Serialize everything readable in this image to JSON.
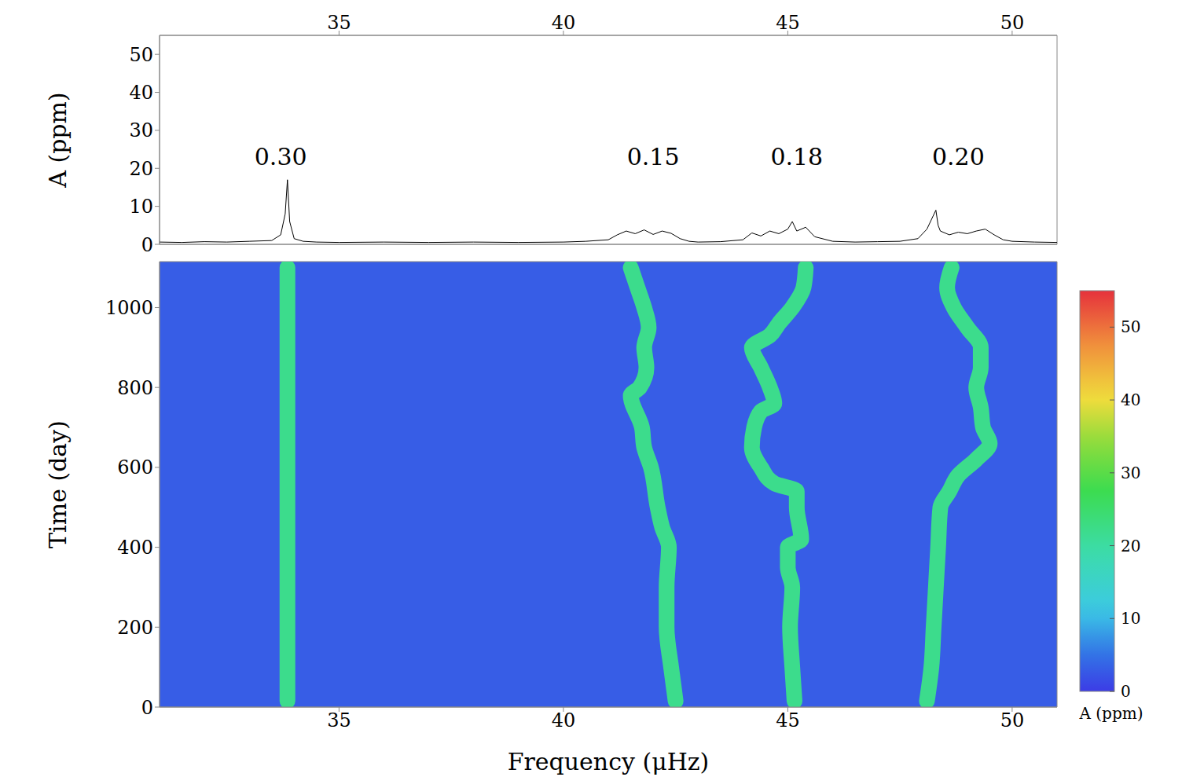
{
  "chart_data": [
    {
      "type": "line",
      "ylabel": "A (ppm)",
      "xlim": [
        31,
        51
      ],
      "xticks": [
        35,
        40,
        45,
        50
      ],
      "ylim": [
        0,
        55
      ],
      "yticks": [
        0,
        10,
        20,
        30,
        40,
        50
      ],
      "color": "#000000",
      "x": [
        31,
        31.5,
        32,
        32.5,
        33,
        33.5,
        33.7,
        33.8,
        33.85,
        33.9,
        34.0,
        34.2,
        34.5,
        35,
        36,
        37,
        38,
        39,
        40,
        40.5,
        41,
        41.2,
        41.4,
        41.6,
        41.8,
        42.0,
        42.2,
        42.4,
        42.6,
        42.8,
        43,
        43.5,
        44,
        44.2,
        44.4,
        44.6,
        44.8,
        45.0,
        45.1,
        45.2,
        45.4,
        45.6,
        46,
        46.5,
        47,
        47.5,
        47.9,
        48.1,
        48.3,
        48.35,
        48.4,
        48.6,
        48.8,
        49.0,
        49.2,
        49.4,
        49.6,
        49.8,
        50,
        50.5,
        51
      ],
      "values": [
        0.6,
        0.5,
        0.7,
        0.6,
        0.8,
        1.0,
        2.5,
        8,
        17,
        6,
        1.5,
        0.8,
        0.6,
        0.5,
        0.6,
        0.5,
        0.6,
        0.5,
        0.6,
        0.8,
        1.2,
        2.5,
        3.5,
        2.8,
        3.8,
        2.6,
        3.5,
        2.9,
        1.5,
        0.8,
        0.6,
        0.7,
        1.2,
        3,
        2.2,
        3.5,
        2.8,
        4,
        6,
        3.5,
        4.5,
        2,
        0.8,
        0.6,
        0.7,
        0.8,
        1.5,
        4,
        9,
        5,
        3.5,
        2.5,
        3.2,
        2.8,
        3.5,
        4,
        2.5,
        1.2,
        0.8,
        0.6,
        0.5
      ],
      "annotations": [
        {
          "text": "0.30",
          "x": 33.7,
          "y": 23
        },
        {
          "text": "0.15",
          "x": 42.0,
          "y": 23
        },
        {
          "text": "0.18",
          "x": 45.2,
          "y": 23
        },
        {
          "text": "0.20",
          "x": 48.8,
          "y": 23
        }
      ]
    },
    {
      "type": "heatmap",
      "xlabel": "Frequency (μHz)",
      "ylabel": "Time (day)",
      "xlim": [
        31,
        51
      ],
      "xticks": [
        35,
        40,
        45,
        50
      ],
      "ylim": [
        0,
        1115
      ],
      "yticks": [
        0,
        200,
        400,
        600,
        800,
        1000
      ],
      "background_amplitude": 3,
      "ridge_amplitude": 22,
      "series": [
        {
          "x": [
            33.85,
            33.85
          ],
          "y": [
            15,
            1100
          ]
        },
        {
          "x": [
            42.5,
            42.4,
            42.3,
            42.3,
            42.35,
            42.2,
            42.1,
            41.95,
            41.8,
            41.75,
            41.5,
            41.7,
            41.85,
            41.8,
            41.9,
            41.8,
            41.65,
            41.5
          ],
          "y": [
            15,
            100,
            200,
            300,
            400,
            450,
            500,
            600,
            650,
            700,
            780,
            800,
            850,
            900,
            950,
            1000,
            1050,
            1100
          ]
        },
        {
          "x": [
            45.15,
            45.1,
            45.05,
            45.1,
            45.0,
            45.0,
            45.3,
            45.2,
            45.2,
            44.7,
            44.4,
            44.2,
            44.25,
            44.4,
            44.7,
            44.6,
            44.4,
            44.2,
            44.6,
            44.8,
            45.1,
            45.35,
            45.4
          ],
          "y": [
            15,
            100,
            200,
            300,
            350,
            400,
            420,
            500,
            540,
            560,
            600,
            650,
            700,
            740,
            760,
            800,
            850,
            900,
            930,
            960,
            1000,
            1050,
            1100
          ]
        },
        {
          "x": [
            48.1,
            48.2,
            48.25,
            48.3,
            48.35,
            48.4,
            48.6,
            48.8,
            49.2,
            49.5,
            49.35,
            49.3,
            49.2,
            49.3,
            49.3,
            49.0,
            48.7,
            48.55,
            48.65
          ],
          "y": [
            15,
            100,
            200,
            300,
            400,
            500,
            540,
            580,
            620,
            660,
            700,
            750,
            800,
            850,
            900,
            950,
            1000,
            1050,
            1100
          ]
        }
      ],
      "colorbar": {
        "label": "A (ppm)",
        "range": [
          0,
          55
        ],
        "ticks": [
          0,
          10,
          20,
          30,
          40,
          50
        ]
      }
    }
  ]
}
